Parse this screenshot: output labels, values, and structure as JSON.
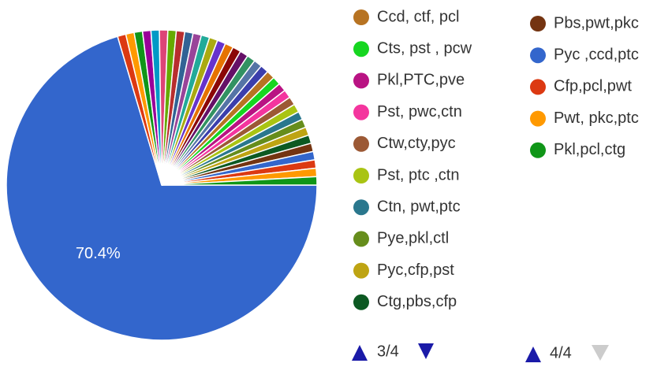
{
  "chart_data": {
    "type": "pie",
    "categories": [
      null,
      null,
      null,
      null,
      null,
      null,
      null,
      null,
      null,
      null,
      null,
      null,
      null,
      null,
      null,
      null,
      null,
      null,
      null,
      null,
      "Ccd, ctf, pcl",
      "Cts, pst , pcw",
      "Pkl,PTC,pve",
      "Pst, pwc,ctn",
      "Ctw,cty,pyc",
      "Pst, ptc ,ctn",
      "Ctn, pwt,ptc",
      "Pye,pkl,ctl",
      "Pyc,cfp,pst",
      "Ctg,pbs,cfp",
      "Pbs,pwt,pkc",
      "Pyc ,ccd,ptc",
      "Cfp,pcl,pwt",
      "Pwt, pkc,ptc",
      "Pkl,pcl,ctg"
    ],
    "values": [
      70.4,
      0.87,
      0.87,
      0.87,
      0.87,
      0.87,
      0.87,
      0.87,
      0.87,
      0.87,
      0.87,
      0.87,
      0.87,
      0.87,
      0.87,
      0.87,
      0.87,
      0.87,
      0.87,
      0.87,
      0.87,
      0.87,
      0.87,
      0.87,
      0.87,
      0.87,
      0.87,
      0.87,
      0.87,
      0.87,
      0.87,
      0.87,
      0.87,
      0.87,
      0.87
    ],
    "value_labels": [
      "70.4%",
      null,
      null,
      null,
      null,
      null,
      null,
      null,
      null,
      null,
      null,
      null,
      null,
      null,
      null,
      null,
      null,
      null,
      null,
      null,
      null,
      null,
      null,
      null,
      null,
      null,
      null,
      null,
      null,
      null,
      null,
      null,
      null,
      null,
      null
    ],
    "colors": [
      "#3366cc",
      "#dc3912",
      "#ff9900",
      "#109618",
      "#990099",
      "#0099c6",
      "#dd4477",
      "#66aa00",
      "#b82e2e",
      "#316395",
      "#994499",
      "#22aa99",
      "#aaaa11",
      "#6633cc",
      "#e67300",
      "#8b0707",
      "#651067",
      "#329262",
      "#5574a6",
      "#3b3eac",
      "#b77322",
      "#16d620",
      "#b91383",
      "#f4359e",
      "#9c5935",
      "#a9c413",
      "#2a778d",
      "#668d1c",
      "#bea413",
      "#0c5922",
      "#743411",
      "#3366cc",
      "#dc3912",
      "#ff9900",
      "#109618"
    ],
    "legend_pages": [
      "3/4",
      "4/4"
    ]
  }
}
